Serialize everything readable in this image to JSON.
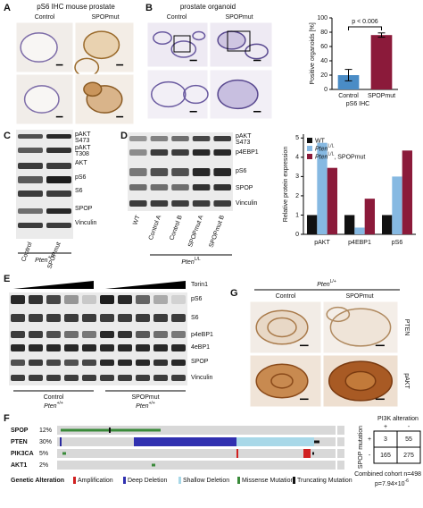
{
  "chart_data": [
    {
      "type": "bar",
      "panel": "B",
      "y_label": "Positive organoids [%]",
      "x_label": "pS6 IHC",
      "categories": [
        "Control",
        "SPOPmut"
      ],
      "values": [
        20,
        76
      ],
      "errors": [
        8,
        3
      ],
      "colors": [
        "#4a8cc6",
        "#8b1a3a"
      ],
      "ylim": [
        0,
        100
      ],
      "yticks": [
        0,
        20,
        40,
        60,
        80,
        100
      ],
      "annotation": "p < 0.006"
    },
    {
      "type": "grouped_bar",
      "panel": "D",
      "y_label": "Relative protein expression",
      "categories": [
        "pAKT",
        "p4EBP1",
        "pS6"
      ],
      "series": [
        {
          "name": "WT",
          "color": "#111111",
          "values": [
            1,
            1,
            1
          ]
        },
        {
          "name": "Pten",
          "name_sup": "L/L",
          "color": "#86b9e2",
          "values": [
            4.75,
            0.35,
            3.0
          ]
        },
        {
          "name": "Pten",
          "name_sup": "L/L",
          "name_suffix": ", SPOPmut",
          "color": "#8b1a3a",
          "values": [
            3.45,
            1.85,
            4.35
          ]
        }
      ],
      "ylim": [
        0,
        5.2
      ],
      "yticks": [
        0,
        1,
        2,
        3,
        4,
        5
      ],
      "legend": "upper-left"
    }
  ],
  "panels": {
    "A": {
      "letter": "A",
      "title": "pS6 IHC mouse prostate",
      "columns": [
        "Control",
        "SPOPmut"
      ]
    },
    "B": {
      "letter": "B",
      "title": "prostate organoid",
      "columns": [
        "Control",
        "SPOPmut"
      ]
    },
    "C": {
      "letter": "C",
      "proteins": [
        [
          "pAKT",
          "S473"
        ],
        [
          "pAKT",
          "T308"
        ],
        [
          "AKT"
        ],
        [
          "pS6"
        ],
        [
          "S6"
        ],
        [
          "SPOP"
        ],
        [
          "Vinculin"
        ]
      ],
      "lanes": [
        "Control",
        "SPOPmut"
      ],
      "genotype": {
        "text": "Pten",
        "sup": "+/+"
      }
    },
    "D": {
      "letter": "D",
      "proteins": [
        [
          "pAKT",
          "S473"
        ],
        [
          "p4EBP1"
        ],
        [
          "pS6"
        ],
        [
          "SPOP"
        ],
        [
          "Vinculin"
        ]
      ],
      "lanes": [
        "WT",
        "Control A",
        "Control B",
        "SPOPmut A",
        "SPOPmut B"
      ],
      "genotype": {
        "text": "Pten",
        "sup": "L/L"
      }
    },
    "E": {
      "letter": "E",
      "treatment": "Torin1",
      "proteins": [
        "pS6",
        "S6",
        "p4eBP1",
        "4eBP1",
        "SPOP",
        "Vinculin"
      ],
      "groups": [
        {
          "label": "Control",
          "genotype": {
            "text": "Pten",
            "sup": "+/+"
          }
        },
        {
          "label": "SPOPmut",
          "genotype": {
            "text": "Pten",
            "sup": "+/+"
          }
        }
      ]
    },
    "F": {
      "letter": "F",
      "genes": [
        {
          "name": "SPOP",
          "percent": "12%"
        },
        {
          "name": "PTEN",
          "percent": "30%"
        },
        {
          "name": "PIK3CA",
          "percent": "5%"
        },
        {
          "name": "AKT1",
          "percent": "2%"
        }
      ],
      "legend_title": "Genetic Alteration",
      "legend": [
        "Amplification",
        "Deep Deletion",
        "Shallow Deletion",
        "Missense Mutation",
        "Truncating Mutation"
      ],
      "table": {
        "title": "PI3K alteration",
        "col_labels": [
          "+",
          "-"
        ],
        "row_title": "SPOP mutation",
        "row_labels": [
          "+",
          "-"
        ],
        "rows": [
          [
            3,
            55
          ],
          [
            165,
            275
          ]
        ]
      },
      "cohort": "Combined cohort n=498",
      "p_value": {
        "text": "p=7.94×10",
        "sup": "-6"
      }
    },
    "G": {
      "letter": "G",
      "genotype": {
        "text": "Pten",
        "sup": "L/+"
      },
      "columns": [
        "Control",
        "SPOPmut"
      ],
      "stains": [
        "PTEN",
        "pAKT"
      ]
    }
  }
}
